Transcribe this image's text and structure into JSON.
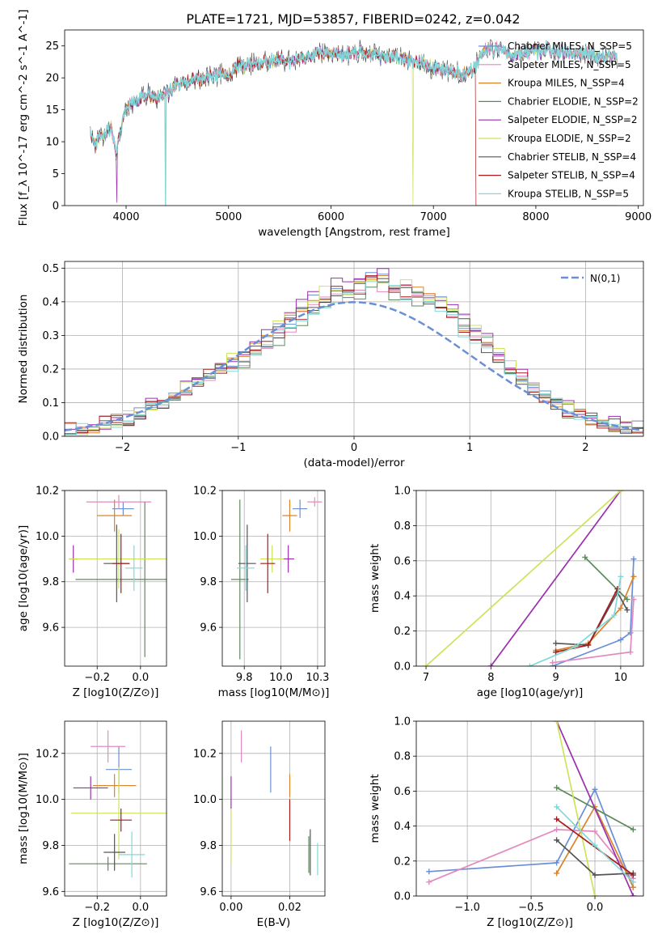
{
  "figure": {
    "title": "PLATE=1721, MJD=53857, FIBERID=0242, z=0.042",
    "series_colors": [
      "#6b8fd6",
      "#e28ac0",
      "#d9832c",
      "#5e8a5e",
      "#9b2fae",
      "#cde35a",
      "#555555",
      "#a51c1c",
      "#82d8d8"
    ]
  },
  "chart_data": [
    {
      "id": "spectrum",
      "type": "line",
      "title": "PLATE=1721, MJD=53857, FIBERID=0242, z=0.042",
      "xlabel": "wavelength [Angstrom, rest frame]",
      "ylabel": "Flux [f_λ 10^-17 erg cm^-2 s^-1 A^-1]",
      "xlim": [
        3400,
        9050
      ],
      "ylim": [
        0,
        27.5
      ],
      "xticks": [
        4000,
        5000,
        6000,
        7000,
        8000,
        9000
      ],
      "yticks": [
        0,
        5,
        10,
        15,
        20,
        25
      ],
      "grid": false,
      "legend": "top-right",
      "legend_entries": [
        "Chabrier MILES, N_SSP=5",
        "Salpeter MILES, N_SSP=5",
        "Kroupa MILES, N_SSP=4",
        "Chabrier ELODIE, N_SSP=2",
        "Salpeter ELODIE, N_SSP=2",
        "Kroupa ELODIE, N_SSP=2",
        "Chabrier STELIB, N_SSP=4",
        "Salpeter STELIB, N_SSP=4",
        "Kroupa STELIB, N_SSP=5"
      ],
      "x": [
        3650,
        3700,
        3750,
        3800,
        3850,
        3900,
        3950,
        4000,
        4100,
        4200,
        4300,
        4400,
        4500,
        4600,
        4700,
        4800,
        4900,
        5000,
        5100,
        5200,
        5300,
        5400,
        5500,
        5600,
        5700,
        5800,
        5900,
        6000,
        6100,
        6200,
        6300,
        6400,
        6500,
        6600,
        6700,
        6800,
        6900,
        7000,
        7100,
        7200,
        7300,
        7400,
        7500,
        7600,
        7700,
        7800,
        7900,
        8000,
        8100,
        8200,
        8300,
        8400,
        8500,
        8600,
        8700,
        8800
      ],
      "y": [
        11.5,
        9.5,
        11.5,
        11.0,
        12.5,
        8.0,
        12.0,
        15.5,
        16.5,
        17.5,
        17.0,
        17.5,
        19.0,
        19.5,
        20.0,
        20.0,
        20.5,
        20.5,
        22.0,
        22.0,
        22.5,
        22.5,
        23.0,
        22.5,
        23.0,
        23.5,
        24.0,
        24.0,
        23.5,
        24.0,
        24.0,
        23.5,
        23.5,
        23.5,
        23.0,
        22.5,
        22.5,
        21.5,
        21.5,
        21.0,
        20.5,
        21.5,
        24.5,
        24.5,
        24.0,
        23.5,
        24.0,
        24.0,
        24.5,
        24.0,
        24.0,
        24.0,
        24.0,
        23.5,
        23.5,
        23.0
      ]
    },
    {
      "id": "residuals",
      "type": "step",
      "xlabel": "(data-model)/error",
      "ylabel": "Normed distribution",
      "xlim": [
        -2.5,
        2.5
      ],
      "ylim": [
        0,
        0.52
      ],
      "xticks": [
        -2,
        -1,
        0,
        1,
        2
      ],
      "yticks": [
        0.0,
        0.1,
        0.2,
        0.3,
        0.4,
        0.5
      ],
      "grid": true,
      "legend": "top-right",
      "legend_entries": [
        "N(0,1)"
      ],
      "bin_width": 0.1,
      "bins": [
        -2.5,
        -2.4,
        -2.3,
        -2.2,
        -2.1,
        -2.0,
        -1.9,
        -1.8,
        -1.7,
        -1.6,
        -1.5,
        -1.4,
        -1.3,
        -1.2,
        -1.1,
        -1.0,
        -0.9,
        -0.8,
        -0.7,
        -0.6,
        -0.5,
        -0.4,
        -0.3,
        -0.2,
        -0.1,
        0.0,
        0.1,
        0.2,
        0.3,
        0.4,
        0.5,
        0.6,
        0.7,
        0.8,
        0.9,
        1.0,
        1.1,
        1.2,
        1.3,
        1.4,
        1.5,
        1.6,
        1.7,
        1.8,
        1.9,
        2.0,
        2.1,
        2.2,
        2.3,
        2.4
      ],
      "values": [
        0.02,
        0.025,
        0.03,
        0.04,
        0.045,
        0.055,
        0.07,
        0.09,
        0.1,
        0.12,
        0.14,
        0.16,
        0.18,
        0.21,
        0.22,
        0.24,
        0.26,
        0.28,
        0.31,
        0.34,
        0.37,
        0.39,
        0.41,
        0.43,
        0.42,
        0.44,
        0.47,
        0.46,
        0.44,
        0.43,
        0.42,
        0.41,
        0.4,
        0.38,
        0.33,
        0.31,
        0.27,
        0.24,
        0.2,
        0.17,
        0.14,
        0.12,
        0.1,
        0.08,
        0.06,
        0.05,
        0.04,
        0.035,
        0.03,
        0.025
      ]
    },
    {
      "id": "age-vs-Z",
      "type": "errorbar",
      "xlabel": "Z [log10(Z/Z⊙)]",
      "ylabel": "age [log10(age/yr)]",
      "xlim": [
        -0.35,
        0.12
      ],
      "ylim": [
        9.43,
        10.2
      ],
      "xticks": [
        -0.2,
        0.0
      ],
      "yticks": [
        9.6,
        9.8,
        10.0,
        10.2
      ],
      "grid": true,
      "points": [
        {
          "x": -0.08,
          "y": 10.12,
          "xerr": 0.05,
          "yerr": 0.03
        },
        {
          "x": -0.1,
          "y": 10.15,
          "xerr": 0.15,
          "yerr": 0.03
        },
        {
          "x": -0.12,
          "y": 10.09,
          "xerr": 0.08,
          "yerr": 0.07
        },
        {
          "x": 0.02,
          "y": 9.81,
          "xerr": 0.32,
          "yerr": 0.34
        },
        {
          "x": -0.31,
          "y": 9.9,
          "xerr": 0.02,
          "yerr": 0.06
        },
        {
          "x": -0.1,
          "y": 9.9,
          "xerr": 0.23,
          "yerr": 0.13
        },
        {
          "x": -0.11,
          "y": 9.88,
          "xerr": 0.06,
          "yerr": 0.17
        },
        {
          "x": -0.09,
          "y": 9.88,
          "xerr": 0.04,
          "yerr": 0.13
        },
        {
          "x": -0.03,
          "y": 9.86,
          "xerr": 0.04,
          "yerr": 0.1
        }
      ]
    },
    {
      "id": "age-vs-mass",
      "type": "errorbar",
      "xlabel": "mass [log10(M/M⊙)]",
      "ylabel": "",
      "xlim": [
        9.6,
        10.3
      ],
      "ylim": [
        9.43,
        10.2
      ],
      "xticks": [
        9.75,
        10.0,
        10.25
      ],
      "yticks": [
        9.6,
        9.8,
        10.0,
        10.2
      ],
      "grid": true,
      "points": [
        {
          "x": 10.13,
          "y": 10.12,
          "xerr": 0.05,
          "yerr": 0.04
        },
        {
          "x": 10.23,
          "y": 10.15,
          "xerr": 0.05,
          "yerr": 0.02
        },
        {
          "x": 10.06,
          "y": 10.09,
          "xerr": 0.05,
          "yerr": 0.07
        },
        {
          "x": 9.72,
          "y": 9.81,
          "xerr": 0.06,
          "yerr": 0.35
        },
        {
          "x": 10.05,
          "y": 9.9,
          "xerr": 0.04,
          "yerr": 0.06
        },
        {
          "x": 9.94,
          "y": 9.9,
          "xerr": 0.08,
          "yerr": 0.06
        },
        {
          "x": 9.77,
          "y": 9.88,
          "xerr": 0.06,
          "yerr": 0.17
        },
        {
          "x": 9.91,
          "y": 9.88,
          "xerr": 0.05,
          "yerr": 0.13
        },
        {
          "x": 9.76,
          "y": 9.86,
          "xerr": 0.06,
          "yerr": 0.1
        }
      ]
    },
    {
      "id": "massweight-vs-age",
      "type": "line",
      "xlabel": "age [log10(age/yr)]",
      "ylabel": "mass weight",
      "xlim": [
        6.85,
        10.35
      ],
      "ylim": [
        0,
        1
      ],
      "xticks": [
        7,
        8,
        9,
        10
      ],
      "yticks": [
        0.0,
        0.2,
        0.4,
        0.6,
        0.8,
        1.0
      ],
      "grid": true,
      "series": [
        {
          "x": [
            8.95,
            10.0,
            10.15,
            10.2
          ],
          "y": [
            0.0,
            0.15,
            0.19,
            0.61
          ]
        },
        {
          "x": [
            8.95,
            10.15,
            10.2
          ],
          "y": [
            0.02,
            0.08,
            0.38
          ]
        },
        {
          "x": [
            9.0,
            9.5,
            10.0,
            10.2
          ],
          "y": [
            0.09,
            0.13,
            0.33,
            0.51
          ]
        },
        {
          "x": [
            9.45,
            10.1
          ],
          "y": [
            0.62,
            0.38
          ]
        },
        {
          "x": [
            8.0,
            10.0
          ],
          "y": [
            0.0,
            1.0
          ]
        },
        {
          "x": [
            7.0,
            10.0
          ],
          "y": [
            0.0,
            1.0
          ]
        },
        {
          "x": [
            9.0,
            9.5,
            9.95,
            10.1
          ],
          "y": [
            0.13,
            0.12,
            0.42,
            0.32
          ]
        },
        {
          "x": [
            9.0,
            9.5,
            9.95
          ],
          "y": [
            0.08,
            0.12,
            0.44
          ]
        },
        {
          "x": [
            8.6,
            9.3,
            9.9,
            10.0
          ],
          "y": [
            0.0,
            0.11,
            0.29,
            0.51
          ]
        }
      ]
    },
    {
      "id": "mass-vs-Z",
      "type": "errorbar",
      "xlabel": "Z [log10(Z/Z⊙)]",
      "ylabel": "mass [log10(M/M⊙)]",
      "xlim": [
        -0.35,
        0.12
      ],
      "ylim": [
        9.58,
        10.34
      ],
      "xticks": [
        -0.2,
        0.0
      ],
      "yticks": [
        9.6,
        9.8,
        10.0,
        10.2
      ],
      "grid": true,
      "points": [
        {
          "x": -0.1,
          "y": 10.13,
          "xerr": 0.06,
          "yerr": 0.1
        },
        {
          "x": -0.15,
          "y": 10.23,
          "xerr": 0.08,
          "yerr": 0.07
        },
        {
          "x": -0.12,
          "y": 10.06,
          "xerr": 0.1,
          "yerr": 0.05
        },
        {
          "x": -0.15,
          "y": 9.72,
          "xerr": 0.18,
          "yerr": 0.03
        },
        {
          "x": -0.23,
          "y": 10.05,
          "xerr": 0.08,
          "yerr": 0.05
        },
        {
          "x": -0.1,
          "y": 9.94,
          "xerr": 0.22,
          "yerr": 0.2
        },
        {
          "x": -0.12,
          "y": 9.77,
          "xerr": 0.05,
          "yerr": 0.08
        },
        {
          "x": -0.09,
          "y": 9.91,
          "xerr": 0.05,
          "yerr": 0.05
        },
        {
          "x": -0.04,
          "y": 9.76,
          "xerr": 0.06,
          "yerr": 0.1
        }
      ]
    },
    {
      "id": "mass-vs-EBV",
      "type": "errorbar",
      "xlabel": "E(B-V)",
      "ylabel": "",
      "xlim": [
        -0.003,
        0.032
      ],
      "ylim": [
        9.58,
        10.34
      ],
      "xticks": [
        0.0,
        0.02
      ],
      "yticks": [
        9.6,
        9.8,
        10.0,
        10.2
      ],
      "grid": true,
      "points": [
        {
          "x": 0.0135,
          "y": 10.13,
          "xerr": 0.0,
          "yerr": 0.1
        },
        {
          "x": 0.0035,
          "y": 10.23,
          "xerr": 0.0,
          "yerr": 0.07
        },
        {
          "x": 0.02,
          "y": 10.06,
          "xerr": 0.0,
          "yerr": 0.05
        },
        {
          "x": 0.0265,
          "y": 9.76,
          "xerr": 0.0,
          "yerr": 0.08
        },
        {
          "x": 0.0,
          "y": 10.03,
          "xerr": 0.0,
          "yerr": 0.07
        },
        {
          "x": 0.0,
          "y": 9.84,
          "xerr": 0.0,
          "yerr": 0.12
        },
        {
          "x": 0.027,
          "y": 9.77,
          "xerr": 0.0,
          "yerr": 0.1
        },
        {
          "x": 0.02,
          "y": 9.91,
          "xerr": 0.0,
          "yerr": 0.09
        },
        {
          "x": 0.0295,
          "y": 9.74,
          "xerr": 0.0,
          "yerr": 0.07
        }
      ]
    },
    {
      "id": "massweight-vs-Z",
      "type": "line",
      "xlabel": "Z [log10(Z/Z⊙)]",
      "ylabel": "mass weight",
      "xlim": [
        -1.4,
        0.38
      ],
      "ylim": [
        0,
        1
      ],
      "xticks": [
        -1.0,
        -0.5,
        0.0
      ],
      "yticks": [
        0.0,
        0.2,
        0.4,
        0.6,
        0.8,
        1.0
      ],
      "grid": true,
      "series": [
        {
          "x": [
            -1.3,
            -0.3,
            0.0,
            0.3
          ],
          "y": [
            0.14,
            0.19,
            0.61,
            0.05
          ]
        },
        {
          "x": [
            -1.3,
            -0.3,
            0.0,
            0.3
          ],
          "y": [
            0.08,
            0.38,
            0.37,
            0.1
          ]
        },
        {
          "x": [
            -0.3,
            0.0,
            0.3
          ],
          "y": [
            0.13,
            0.51,
            0.05
          ]
        },
        {
          "x": [
            -0.3,
            0.3
          ],
          "y": [
            0.62,
            0.38
          ]
        },
        {
          "x": [
            -0.3,
            0.3
          ],
          "y": [
            1.0,
            0.0
          ]
        },
        {
          "x": [
            -0.3,
            0.0
          ],
          "y": [
            1.0,
            0.0
          ]
        },
        {
          "x": [
            -0.3,
            0.0,
            0.3
          ],
          "y": [
            0.32,
            0.12,
            0.13
          ]
        },
        {
          "x": [
            -0.3,
            0.3
          ],
          "y": [
            0.44,
            0.12
          ]
        },
        {
          "x": [
            -0.3,
            0.0,
            0.3
          ],
          "y": [
            0.51,
            0.29,
            0.08
          ]
        }
      ]
    }
  ]
}
